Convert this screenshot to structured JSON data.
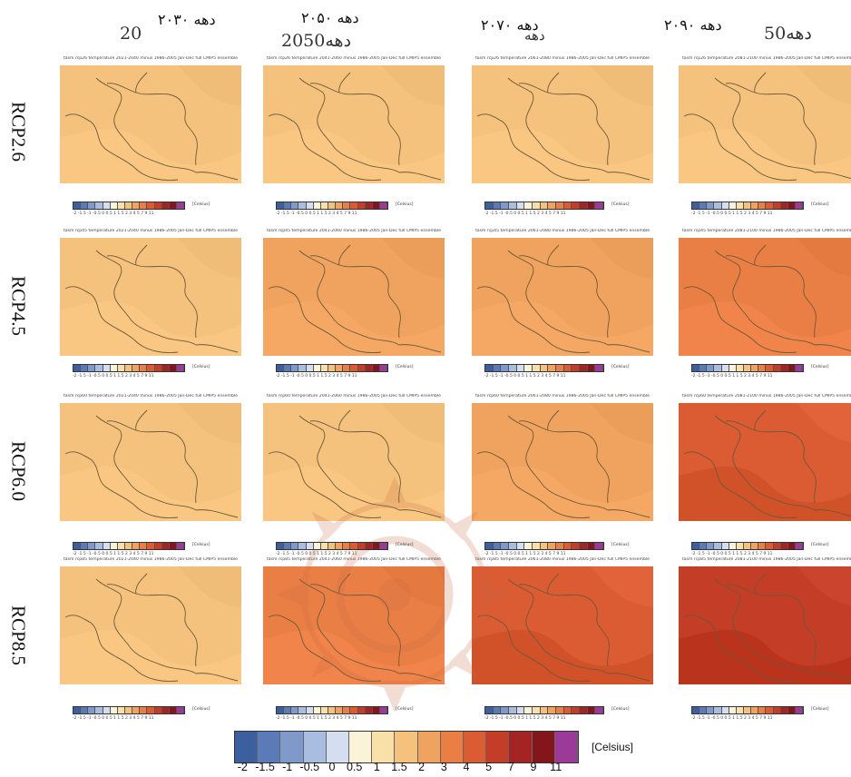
{
  "column_headers": [
    {
      "underlying": "20",
      "label": "دهه ۲۰۳۰"
    },
    {
      "underlying": "2050دهه",
      "label": "دهه ۲۰۵۰"
    },
    {
      "underlying": "دهه",
      "label": "دهه ۲۰۷۰"
    },
    {
      "underlying": "50دهه",
      "label": "دهه ۲۰۹۰"
    }
  ],
  "row_labels": [
    "RCP2.6",
    "RCP4.5",
    "RCP6.0",
    "RCP8.5"
  ],
  "panel_titles": [
    [
      "tasm rcp26 temperature 2021-2040 minus 1986-2005 Jan-Dec full CMIP5 ensemble",
      "tasm rcp26 temperature 2041-2060 minus 1986-2005 Jan-Dec full CMIP5 ensemble",
      "tasm rcp26 temperature 2061-2080 minus 1986-2005 Jan-Dec full CMIP5 ensemble",
      "tasm rcp26 temperature 2081-2100 minus 1986-2005 Jan-Dec full CMIP5 ensemble"
    ],
    [
      "tasm rcp45 temperature 2021-2040 minus 1986-2005 Jan-Dec full CMIP5 ensemble",
      "tasm rcp45 temperature 2041-2060 minus 1986-2005 Jan-Dec full CMIP5 ensemble",
      "tasm rcp45 temperature 2061-2080 minus 1986-2005 Jan-Dec full CMIP5 ensemble",
      "tasm rcp45 temperature 2081-2100 minus 1986-2005 Jan-Dec full CMIP5 ensemble"
    ],
    [
      "tasm rcp60 temperature 2021-2040 minus 1986-2005 Jan-Dec full CMIP5 ensemble",
      "tasm rcp60 temperature 2041-2060 minus 1986-2005 Jan-Dec full CMIP5 ensemble",
      "tasm rcp60 temperature 2061-2080 minus 1986-2005 Jan-Dec full CMIP5 ensemble",
      "tasm rcp60 temperature 2081-2100 minus 1986-2005 Jan-Dec full CMIP5 ensemble"
    ],
    [
      "tasm rcp85 temperature 2021-2040 minus 1986-2005 Jan-Dec full CMIP5 ensemble",
      "tasm rcp85 temperature 2041-2060 minus 1986-2005 Jan-Dec full CMIP5 ensemble",
      "tasm rcp85 temperature 2061-2080 minus 1986-2005 Jan-Dec full CMIP5 ensemble",
      "tasm rcp85 temperature 2081-2100 minus 1986-2005 Jan-Dec full CMIP5 ensemble"
    ]
  ],
  "mini_colorbar": {
    "ticks": "-2 -1.5 -1 -0.5 0 0.5 1 1.5 2 3 4 5 7 9 11",
    "unit": "[Celsius]"
  },
  "colorbar": {
    "ticks": [
      "-2",
      "-1.5",
      "-1",
      "-0.5",
      "0",
      "0.5",
      "1",
      "1.5",
      "2",
      "3",
      "4",
      "5",
      "7",
      "9",
      "11"
    ],
    "unit": "[Celsius]",
    "colors": [
      "#3c5fa0",
      "#5b7ab8",
      "#7f99cb",
      "#a9bde0",
      "#d5def0",
      "#fbf3d7",
      "#f8e0a8",
      "#f4c27c",
      "#f0a35e",
      "#ea7f45",
      "#db5b32",
      "#c43d27",
      "#a42423",
      "#84151b",
      "#9c3a9a"
    ]
  },
  "chart_data": {
    "type": "heatmap",
    "title": "",
    "xlabel": "",
    "ylabel": "",
    "columns": [
      "دهه ۲۰۳۰",
      "دهه ۲۰۵۰",
      "دهه ۲۰۷۰",
      "دهه ۲۰۹۰"
    ],
    "rows": [
      "RCP2.6",
      "RCP4.5",
      "RCP6.0",
      "RCP8.5"
    ],
    "units": "[Celsius]",
    "color_scale_ticks": [
      -2,
      -1.5,
      -1,
      -0.5,
      0,
      0.5,
      1,
      1.5,
      2,
      3,
      4,
      5,
      7,
      9,
      11
    ],
    "values": [
      [
        1.0,
        1.1,
        1.1,
        1.1
      ],
      [
        1.1,
        1.5,
        1.9,
        2.1
      ],
      [
        1.0,
        1.4,
        1.9,
        3.0
      ],
      [
        1.3,
        2.1,
        3.3,
        4.8
      ]
    ]
  }
}
